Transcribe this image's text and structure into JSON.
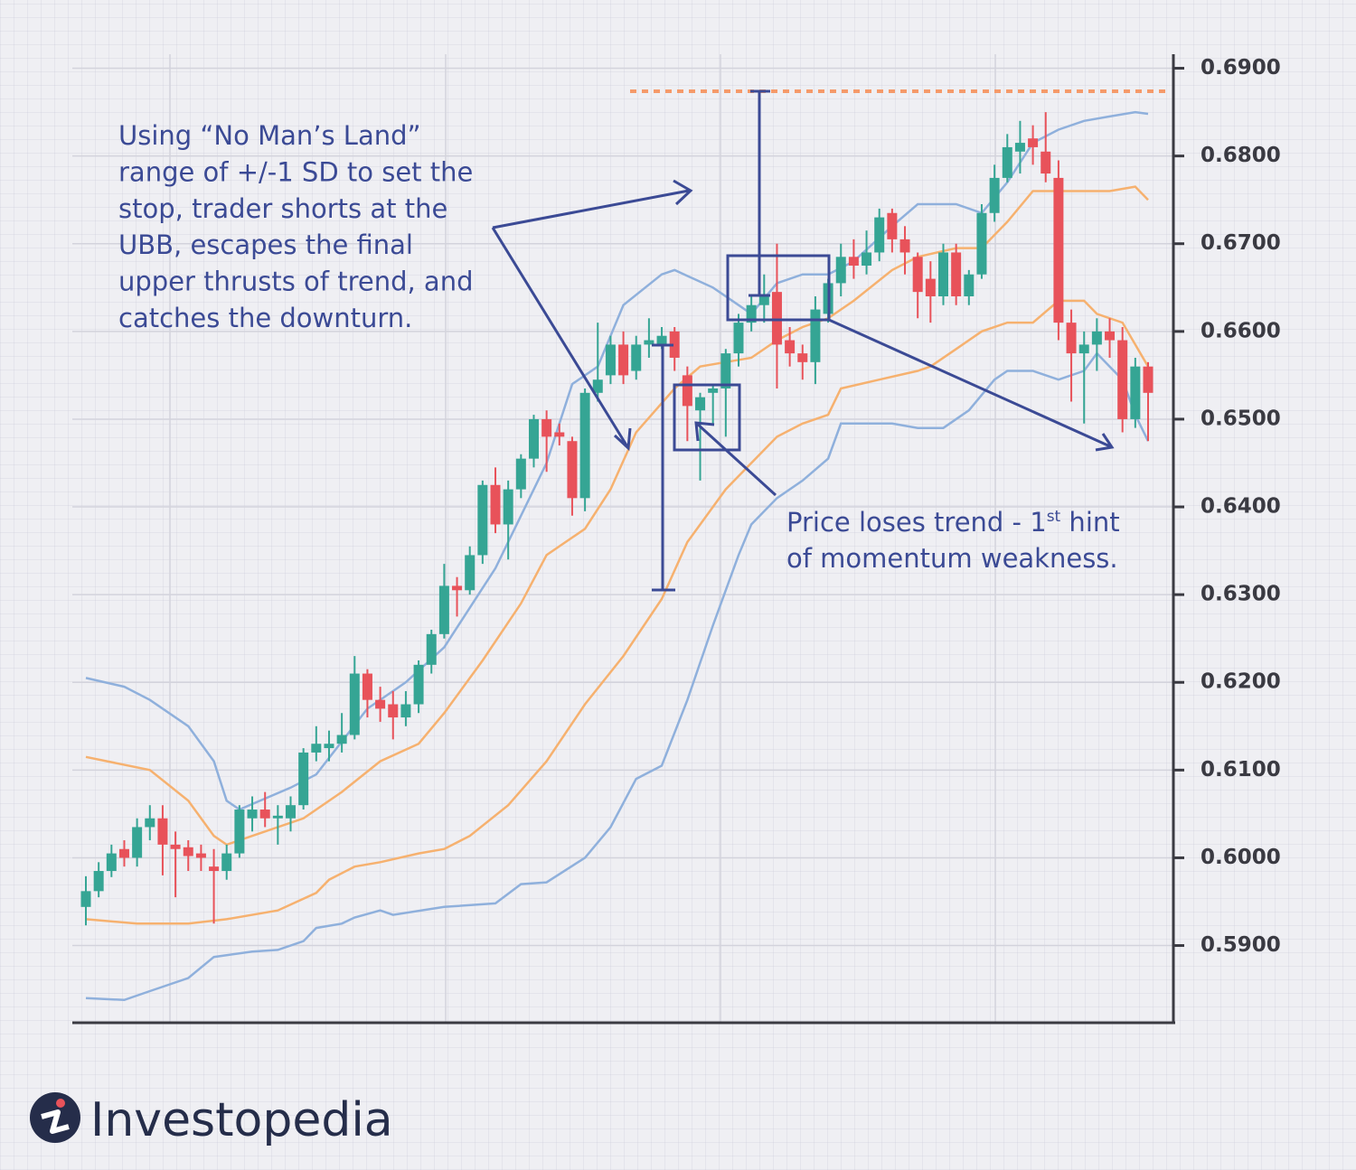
{
  "chart_data": {
    "type": "candlestick",
    "ylim": [
      0.5812,
      0.6916
    ],
    "yticks": [
      {
        "value": 0.59,
        "label": "0.5900"
      },
      {
        "value": 0.6,
        "label": "0.6000"
      },
      {
        "value": 0.61,
        "label": "0.6100"
      },
      {
        "value": 0.62,
        "label": "0.6200"
      },
      {
        "value": 0.63,
        "label": "0.6300"
      },
      {
        "value": 0.64,
        "label": "0.6400"
      },
      {
        "value": 0.65,
        "label": "0.6500"
      },
      {
        "value": 0.66,
        "label": "0.6600"
      },
      {
        "value": 0.67,
        "label": "0.6700"
      },
      {
        "value": 0.68,
        "label": "0.6800"
      },
      {
        "value": 0.69,
        "label": "0.6900"
      }
    ],
    "grid": true,
    "up_color": "#35a594",
    "down_color": "#e8525a",
    "open": [
      0.5944,
      0.5962,
      0.5985,
      0.601,
      0.6,
      0.6035,
      0.6045,
      0.6015,
      0.6012,
      0.6005,
      0.599,
      0.5985,
      0.6005,
      0.6045,
      0.6055,
      0.6045,
      0.6045,
      0.606,
      0.612,
      0.6125,
      0.613,
      0.614,
      0.621,
      0.618,
      0.6175,
      0.616,
      0.6175,
      0.622,
      0.6255,
      0.631,
      0.6305,
      0.6345,
      0.6425,
      0.638,
      0.642,
      0.6455,
      0.65,
      0.6485,
      0.6475,
      0.641,
      0.653,
      0.655,
      0.6585,
      0.6555,
      0.6585,
      0.6585,
      0.66,
      0.655,
      0.651,
      0.653,
      0.6535,
      0.6575,
      0.661,
      0.663,
      0.6645,
      0.659,
      0.6575,
      0.6565,
      0.662,
      0.6655,
      0.6685,
      0.6675,
      0.669,
      0.6735,
      0.6705,
      0.6685,
      0.666,
      0.664,
      0.669,
      0.664,
      0.6665,
      0.6735,
      0.6775,
      0.6805,
      0.682,
      0.6805,
      0.6775,
      0.661,
      0.6575,
      0.6585,
      0.66,
      0.659,
      0.65,
      0.656
    ],
    "high": [
      0.5979,
      0.5995,
      0.6015,
      0.602,
      0.6045,
      0.606,
      0.606,
      0.603,
      0.602,
      0.6015,
      0.601,
      0.6015,
      0.606,
      0.607,
      0.6075,
      0.606,
      0.607,
      0.6125,
      0.615,
      0.6145,
      0.6165,
      0.623,
      0.6215,
      0.6195,
      0.619,
      0.619,
      0.6225,
      0.626,
      0.6335,
      0.632,
      0.6355,
      0.643,
      0.6445,
      0.643,
      0.646,
      0.6505,
      0.651,
      0.6495,
      0.648,
      0.6535,
      0.661,
      0.6595,
      0.66,
      0.6595,
      0.6615,
      0.6605,
      0.6605,
      0.656,
      0.653,
      0.654,
      0.658,
      0.662,
      0.664,
      0.6665,
      0.67,
      0.6605,
      0.6585,
      0.664,
      0.666,
      0.67,
      0.6705,
      0.6715,
      0.674,
      0.674,
      0.672,
      0.669,
      0.668,
      0.67,
      0.67,
      0.667,
      0.6745,
      0.679,
      0.6825,
      0.684,
      0.6835,
      0.685,
      0.6795,
      0.6625,
      0.66,
      0.6615,
      0.6615,
      0.6605,
      0.657,
      0.6565
    ],
    "low": [
      0.5923,
      0.5955,
      0.5978,
      0.599,
      0.599,
      0.602,
      0.598,
      0.5955,
      0.5985,
      0.5985,
      0.5925,
      0.5975,
      0.6,
      0.603,
      0.6035,
      0.6015,
      0.603,
      0.6055,
      0.611,
      0.611,
      0.612,
      0.6135,
      0.616,
      0.6155,
      0.6135,
      0.615,
      0.6165,
      0.621,
      0.625,
      0.6275,
      0.63,
      0.6335,
      0.637,
      0.634,
      0.641,
      0.6445,
      0.644,
      0.647,
      0.639,
      0.6395,
      0.652,
      0.654,
      0.654,
      0.6545,
      0.657,
      0.658,
      0.6555,
      0.6475,
      0.643,
      0.6495,
      0.648,
      0.656,
      0.66,
      0.661,
      0.6535,
      0.656,
      0.6545,
      0.654,
      0.661,
      0.664,
      0.666,
      0.6665,
      0.668,
      0.669,
      0.6665,
      0.6615,
      0.661,
      0.663,
      0.663,
      0.663,
      0.666,
      0.6725,
      0.677,
      0.678,
      0.679,
      0.677,
      0.659,
      0.652,
      0.6495,
      0.6555,
      0.657,
      0.6485,
      0.649,
      0.6475
    ],
    "close": [
      0.5962,
      0.5985,
      0.6005,
      0.6,
      0.6035,
      0.6045,
      0.6015,
      0.601,
      0.6002,
      0.6,
      0.5985,
      0.6005,
      0.6055,
      0.6055,
      0.6045,
      0.6048,
      0.606,
      0.612,
      0.613,
      0.613,
      0.614,
      0.621,
      0.618,
      0.617,
      0.616,
      0.6175,
      0.622,
      0.6255,
      0.631,
      0.6305,
      0.6345,
      0.6425,
      0.638,
      0.642,
      0.6455,
      0.65,
      0.648,
      0.648,
      0.641,
      0.653,
      0.6545,
      0.6585,
      0.655,
      0.6585,
      0.659,
      0.6595,
      0.657,
      0.6515,
      0.6525,
      0.6535,
      0.6575,
      0.661,
      0.663,
      0.664,
      0.6585,
      0.6575,
      0.6565,
      0.6625,
      0.6655,
      0.6685,
      0.6675,
      0.669,
      0.673,
      0.6705,
      0.669,
      0.6645,
      0.664,
      0.669,
      0.664,
      0.6665,
      0.6735,
      0.6775,
      0.681,
      0.6815,
      0.681,
      0.678,
      0.661,
      0.6575,
      0.6585,
      0.66,
      0.659,
      0.65,
      0.656,
      0.653
    ],
    "bands": [
      {
        "color": "#8fb0dc",
        "x": [
          0,
          3,
          5,
          8,
          10,
          11,
          12,
          16,
          18,
          22,
          25,
          28,
          32,
          34,
          36,
          38,
          40,
          42,
          45,
          46,
          49,
          51,
          52,
          54,
          56,
          58,
          60,
          63,
          65,
          68,
          70,
          72,
          74,
          76,
          78,
          80,
          82,
          83
        ],
        "values": [
          0.6205,
          0.6195,
          0.618,
          0.615,
          0.611,
          0.6065,
          0.6055,
          0.608,
          0.6095,
          0.617,
          0.62,
          0.624,
          0.633,
          0.639,
          0.645,
          0.654,
          0.656,
          0.663,
          0.6665,
          0.667,
          0.665,
          0.663,
          0.662,
          0.6655,
          0.6665,
          0.6665,
          0.668,
          0.672,
          0.6745,
          0.6745,
          0.6735,
          0.677,
          0.6815,
          0.683,
          0.684,
          0.6845,
          0.685,
          0.6848
        ]
      },
      {
        "color": "#f6b16f",
        "x": [
          0,
          5,
          8,
          10,
          11,
          13,
          17,
          20,
          23,
          26,
          28,
          31,
          34,
          36,
          39,
          41,
          43,
          46,
          48,
          50,
          52,
          54,
          56,
          58,
          60,
          63,
          65,
          68,
          70,
          72,
          74,
          76,
          80,
          82,
          83
        ],
        "values": [
          0.6115,
          0.61,
          0.6065,
          0.6025,
          0.6015,
          0.6025,
          0.6045,
          0.6075,
          0.611,
          0.613,
          0.6165,
          0.6225,
          0.629,
          0.6345,
          0.6375,
          0.642,
          0.6485,
          0.6535,
          0.656,
          0.6565,
          0.657,
          0.659,
          0.6605,
          0.6615,
          0.6635,
          0.667,
          0.6685,
          0.6695,
          0.6695,
          0.6725,
          0.676,
          0.676,
          0.676,
          0.6765,
          0.675
        ]
      },
      {
        "color": "#f6b16f",
        "x": [
          0,
          4,
          8,
          11,
          15,
          18,
          19,
          21,
          23,
          26,
          28,
          30,
          33,
          36,
          39,
          42,
          45,
          47,
          50,
          52,
          54,
          56,
          58,
          59,
          62,
          65,
          66,
          68,
          70,
          72,
          74,
          76,
          78,
          79,
          81,
          83
        ],
        "values": [
          0.593,
          0.5925,
          0.5925,
          0.593,
          0.594,
          0.596,
          0.5975,
          0.599,
          0.5995,
          0.6005,
          0.601,
          0.6025,
          0.606,
          0.611,
          0.6175,
          0.623,
          0.6295,
          0.636,
          0.642,
          0.645,
          0.648,
          0.6495,
          0.6505,
          0.6535,
          0.6545,
          0.6555,
          0.656,
          0.658,
          0.66,
          0.661,
          0.661,
          0.6635,
          0.6635,
          0.662,
          0.661,
          0.656
        ]
      },
      {
        "color": "#8fb0dc",
        "x": [
          0,
          3,
          5,
          8,
          10,
          13,
          15,
          17,
          18,
          20,
          21,
          23,
          24,
          28,
          32,
          34,
          36,
          39,
          41,
          43,
          45,
          47,
          49,
          51,
          52,
          54,
          56,
          58,
          59,
          63,
          65,
          67,
          69,
          71,
          72,
          74,
          76,
          78,
          79,
          80,
          81,
          82,
          83
        ],
        "values": [
          0.584,
          0.5838,
          0.5848,
          0.5863,
          0.5887,
          0.5893,
          0.5895,
          0.5905,
          0.592,
          0.5925,
          0.5932,
          0.594,
          0.5935,
          0.5944,
          0.5948,
          0.597,
          0.5972,
          0.6,
          0.6035,
          0.609,
          0.6105,
          0.618,
          0.6265,
          0.6345,
          0.638,
          0.641,
          0.643,
          0.6455,
          0.6495,
          0.6495,
          0.649,
          0.649,
          0.651,
          0.6545,
          0.6555,
          0.6555,
          0.6545,
          0.6555,
          0.6575,
          0.656,
          0.6545,
          0.6505,
          0.6475
        ]
      }
    ]
  },
  "annotations": {
    "left_note": [
      "Using “No Man’s Land”",
      "range of +/-1 SD to set the",
      "stop, trader shorts at the",
      "UBB, escapes the final",
      "upper thrusts of trend, and",
      "catches the downturn."
    ],
    "right_note": {
      "line1": [
        "Price loses trend - 1",
        "st",
        " hint"
      ],
      "line2": "of momentum weakness."
    }
  },
  "logo": "Investopedia"
}
